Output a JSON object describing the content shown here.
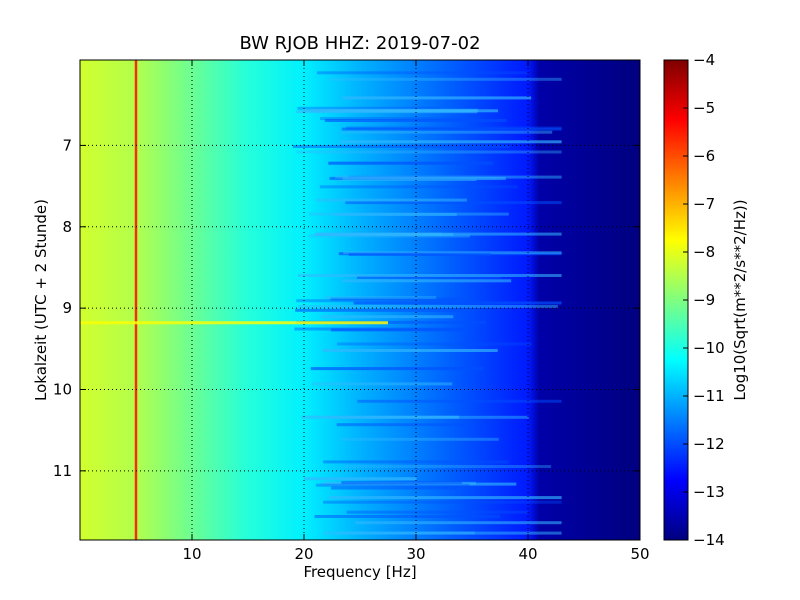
{
  "chart_data": {
    "type": "heatmap",
    "title": "BW RJOB HHZ: 2019-07-02",
    "xlabel": "Frequency [Hz]",
    "ylabel": "Lokalzeit (UTC + 2 Stunde)",
    "xlim": [
      0,
      50
    ],
    "ylim": [
      5.95,
      11.85
    ],
    "y_inverted": true,
    "x_ticks": [
      10,
      20,
      30,
      40,
      50
    ],
    "y_ticks": [
      7,
      8,
      9,
      10,
      11
    ],
    "grid": true,
    "colormap": "jet",
    "colorbar": {
      "label": "Log10(Sqrt(m**2/s**2/Hz))",
      "range": [
        -14,
        -4
      ],
      "ticks": [
        -4,
        -5,
        -6,
        -7,
        -8,
        -9,
        -10,
        -11,
        -12,
        -13,
        -14
      ]
    },
    "spectrum_profile": [
      {
        "freq": 0,
        "value": -8.2
      },
      {
        "freq": 5,
        "value": -8.5
      },
      {
        "freq": 10,
        "value": -9.2
      },
      {
        "freq": 15,
        "value": -9.9
      },
      {
        "freq": 20,
        "value": -10.4
      },
      {
        "freq": 25,
        "value": -11.0
      },
      {
        "freq": 30,
        "value": -11.5
      },
      {
        "freq": 35,
        "value": -12.0
      },
      {
        "freq": 40,
        "value": -12.5
      },
      {
        "freq": 41,
        "value": -13.6
      },
      {
        "freq": 50,
        "value": -14.0
      }
    ],
    "features": [
      {
        "kind": "vertical_line",
        "freq": 5.0,
        "value": -5.5
      },
      {
        "kind": "horizontal_band",
        "time": 9.18,
        "value": -7.8
      }
    ]
  },
  "colors": {
    "colormap_stops": [
      "#00007f",
      "#0000ff",
      "#007fff",
      "#00ffff",
      "#7fff7f",
      "#ffff00",
      "#ff7f00",
      "#ff0000",
      "#7f0000"
    ],
    "plot_background": "#00006e"
  }
}
